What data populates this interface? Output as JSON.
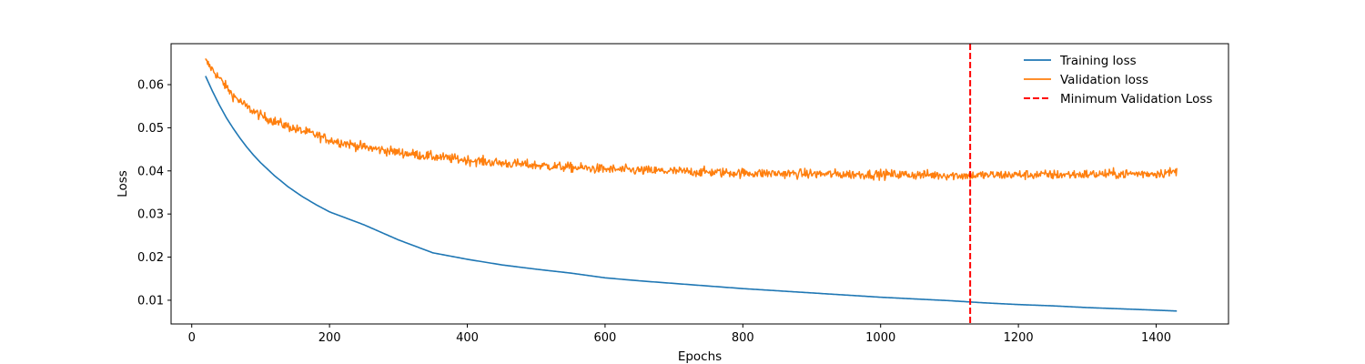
{
  "chart_data": {
    "type": "line",
    "title": "",
    "xlabel": "Epochs",
    "ylabel": "Loss",
    "xlim": [
      -30,
      1505
    ],
    "ylim": [
      0.0045,
      0.0695
    ],
    "xticks": [
      0,
      200,
      400,
      600,
      800,
      1000,
      1200,
      1400
    ],
    "yticks": [
      0.01,
      0.02,
      0.03,
      0.04,
      0.05,
      0.06
    ],
    "xtick_labels": [
      "0",
      "200",
      "400",
      "600",
      "800",
      "1000",
      "1200",
      "1400"
    ],
    "ytick_labels": [
      "0.01",
      "0.02",
      "0.03",
      "0.04",
      "0.05",
      "0.06"
    ],
    "grid": false,
    "legend_position": "top-right",
    "series": [
      {
        "name": "Training loss",
        "color": "#1f77b4",
        "style": "solid",
        "x": [
          20,
          30,
          40,
          50,
          60,
          70,
          80,
          90,
          100,
          120,
          140,
          160,
          180,
          200,
          250,
          300,
          350,
          400,
          450,
          500,
          550,
          600,
          650,
          700,
          750,
          800,
          850,
          900,
          950,
          1000,
          1050,
          1100,
          1130,
          1150,
          1200,
          1250,
          1300,
          1350,
          1400,
          1430
        ],
        "y": [
          0.062,
          0.0585,
          0.0553,
          0.0524,
          0.0499,
          0.0476,
          0.0455,
          0.0436,
          0.0419,
          0.0389,
          0.0363,
          0.0341,
          0.0322,
          0.0305,
          0.0275,
          0.024,
          0.021,
          0.0195,
          0.0182,
          0.0172,
          0.0163,
          0.0152,
          0.0145,
          0.0139,
          0.0133,
          0.0127,
          0.0122,
          0.0117,
          0.0112,
          0.0107,
          0.0103,
          0.0099,
          0.0096,
          0.0094,
          0.009,
          0.0087,
          0.0083,
          0.008,
          0.0077,
          0.0075
        ]
      },
      {
        "name": "Validation loss",
        "color": "#ff7f0e",
        "style": "solid",
        "noisy": true,
        "x": [
          20,
          40,
          60,
          80,
          100,
          125,
          150,
          175,
          200,
          250,
          300,
          350,
          400,
          450,
          500,
          550,
          600,
          650,
          700,
          750,
          800,
          850,
          900,
          950,
          1000,
          1050,
          1100,
          1130,
          1150,
          1200,
          1250,
          1300,
          1350,
          1400,
          1430
        ],
        "y": [
          0.0655,
          0.0615,
          0.0575,
          0.0548,
          0.0528,
          0.0512,
          0.0497,
          0.0486,
          0.0472,
          0.0455,
          0.0443,
          0.0433,
          0.0425,
          0.0418,
          0.0413,
          0.0408,
          0.0404,
          0.0401,
          0.0399,
          0.0397,
          0.0395,
          0.0394,
          0.0393,
          0.0392,
          0.0392,
          0.0391,
          0.039,
          0.0389,
          0.039,
          0.0391,
          0.0391,
          0.0392,
          0.0393,
          0.0394,
          0.0398
        ]
      },
      {
        "name": "Minimum Validation Loss",
        "color": "#ff0000",
        "style": "dashed",
        "type": "vline",
        "x": 1130
      }
    ]
  }
}
